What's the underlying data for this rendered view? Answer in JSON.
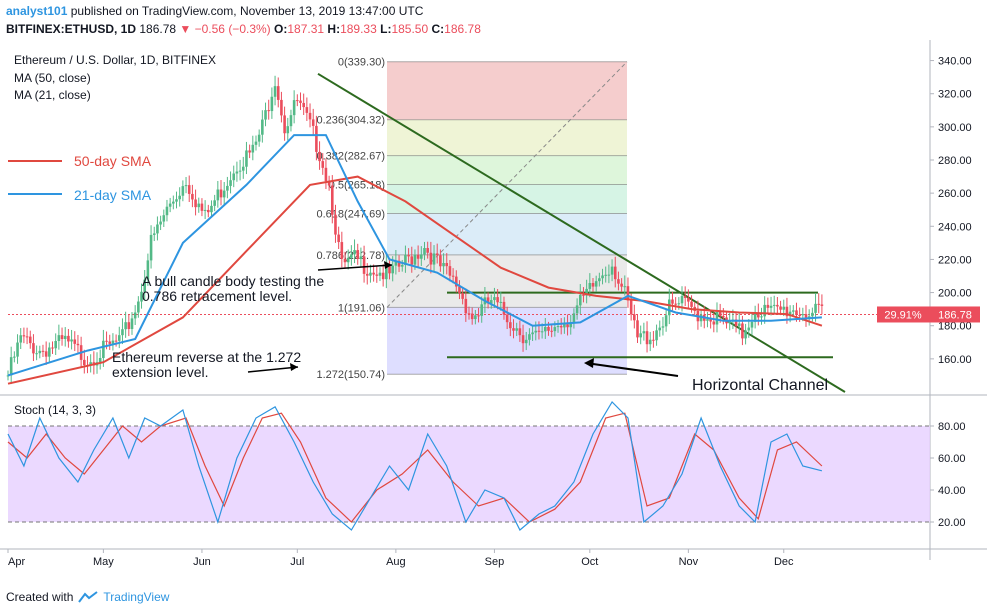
{
  "header": {
    "user": "analyst101",
    "published": "published on TradingView.com, November 13, 2019 13:47:00 UTC",
    "symbol": "BITFINEX:ETHUSD, 1D",
    "last": "186.78",
    "change": "▼ −0.56 (−0.3%)",
    "o_label": "O:",
    "o": "187.31",
    "h_label": "H:",
    "h": "189.33",
    "l_label": "L:",
    "l": "185.50",
    "c_label": "C:",
    "c": "186.78"
  },
  "legend": {
    "title": "Ethereum / U.S. Dollar, 1D, BITFINEX",
    "ma50": "MA (50, close)",
    "ma21": "MA (21, close)"
  },
  "annotations": {
    "sma50": "50-day SMA",
    "sma21": "21-day SMA",
    "bull_line1": "A bull candle body testing the",
    "bull_line2": "0.786 retracement level.",
    "reverse_line1": "Ethereum reverse at the 1.272",
    "reverse_line2": "extension level.",
    "channel": "Horizontal Channel"
  },
  "price_tag": {
    "pct": "29.91%",
    "price": "186.78"
  },
  "stoch": {
    "label": "Stoch (14, 3, 3)",
    "ticks": [
      "80.00",
      "60.00",
      "40.00",
      "20.00"
    ]
  },
  "footer": {
    "created_with": "Created with",
    "brand": "TradingView"
  },
  "colors": {
    "up": "#53b987",
    "down": "#eb4d5c",
    "ma50": "#e0483f",
    "ma21": "#2e95e0",
    "trend": "#2d6a1f",
    "stoch_k": "#2e95e0",
    "stoch_d": "#e0483f",
    "stoch_band": "#e6cfff"
  },
  "chart_data": {
    "type": "candlestick",
    "x_ticks": [
      "Apr",
      "May",
      "Jun",
      "Jul",
      "Aug",
      "Sep",
      "Oct",
      "Nov",
      "Dec"
    ],
    "y_ticks": [
      160,
      180,
      200,
      220,
      240,
      260,
      280,
      300,
      320,
      340
    ],
    "ylim": [
      140,
      350
    ],
    "fib_levels": [
      {
        "label": "0(339.30)",
        "value": 339.3,
        "color": "#f2bcbc"
      },
      {
        "label": "0.236(304.32)",
        "value": 304.32,
        "color": "#e9f0c8"
      },
      {
        "label": "0.382(282.67)",
        "value": 282.67,
        "color": "#d3f3cf"
      },
      {
        "label": "0.5(265.18)",
        "value": 265.18,
        "color": "#c8f0dc"
      },
      {
        "label": "0.618(247.69)",
        "value": 247.69,
        "color": "#cfe6f5"
      },
      {
        "label": "0.786(222.78)",
        "value": 222.78,
        "color": "#e3e3e3"
      },
      {
        "label": "1(191.06)",
        "value": 191.06,
        "color": "#d3d3ff"
      },
      {
        "label": "1.272(150.74)",
        "value": 150.74,
        "color": "#a3d6a6"
      }
    ],
    "channel": [
      200,
      161
    ],
    "price_series": [
      {
        "d": 0,
        "c": 150
      },
      {
        "d": 4,
        "c": 172
      },
      {
        "d": 10,
        "c": 165
      },
      {
        "d": 18,
        "c": 170
      },
      {
        "d": 25,
        "c": 160
      },
      {
        "d": 30,
        "c": 165
      },
      {
        "d": 36,
        "c": 172
      },
      {
        "d": 41,
        "c": 195
      },
      {
        "d": 45,
        "c": 230
      },
      {
        "d": 50,
        "c": 250
      },
      {
        "d": 56,
        "c": 268
      },
      {
        "d": 62,
        "c": 245
      },
      {
        "d": 67,
        "c": 262
      },
      {
        "d": 72,
        "c": 278
      },
      {
        "d": 77,
        "c": 285
      },
      {
        "d": 80,
        "c": 300
      },
      {
        "d": 84,
        "c": 330
      },
      {
        "d": 87,
        "c": 300
      },
      {
        "d": 91,
        "c": 315
      },
      {
        "d": 95,
        "c": 300
      },
      {
        "d": 98,
        "c": 285
      },
      {
        "d": 101,
        "c": 265
      },
      {
        "d": 105,
        "c": 215
      },
      {
        "d": 109,
        "c": 220
      },
      {
        "d": 114,
        "c": 215
      },
      {
        "d": 120,
        "c": 210
      },
      {
        "d": 126,
        "c": 220
      },
      {
        "d": 131,
        "c": 228
      },
      {
        "d": 136,
        "c": 215
      },
      {
        "d": 141,
        "c": 205
      },
      {
        "d": 146,
        "c": 185
      },
      {
        "d": 152,
        "c": 195
      },
      {
        "d": 157,
        "c": 185
      },
      {
        "d": 162,
        "c": 175
      },
      {
        "d": 167,
        "c": 172
      },
      {
        "d": 172,
        "c": 180
      },
      {
        "d": 177,
        "c": 185
      },
      {
        "d": 182,
        "c": 198
      },
      {
        "d": 187,
        "c": 212
      },
      {
        "d": 190,
        "c": 218
      },
      {
        "d": 194,
        "c": 198
      },
      {
        "d": 198,
        "c": 172
      },
      {
        "d": 203,
        "c": 175
      },
      {
        "d": 208,
        "c": 190
      },
      {
        "d": 212,
        "c": 193
      },
      {
        "d": 217,
        "c": 188
      },
      {
        "d": 222,
        "c": 185
      },
      {
        "d": 227,
        "c": 180
      },
      {
        "d": 231,
        "c": 175
      },
      {
        "d": 235,
        "c": 190
      },
      {
        "d": 240,
        "c": 188
      },
      {
        "d": 246,
        "c": 190
      },
      {
        "d": 251,
        "c": 188
      },
      {
        "d": 256,
        "c": 186.78
      }
    ],
    "ma50": [
      {
        "d": 0,
        "c": 145
      },
      {
        "d": 30,
        "c": 158
      },
      {
        "d": 55,
        "c": 185
      },
      {
        "d": 75,
        "c": 225
      },
      {
        "d": 95,
        "c": 265
      },
      {
        "d": 110,
        "c": 270
      },
      {
        "d": 125,
        "c": 255
      },
      {
        "d": 140,
        "c": 235
      },
      {
        "d": 155,
        "c": 215
      },
      {
        "d": 170,
        "c": 203
      },
      {
        "d": 185,
        "c": 198
      },
      {
        "d": 200,
        "c": 195
      },
      {
        "d": 215,
        "c": 190
      },
      {
        "d": 230,
        "c": 188
      },
      {
        "d": 245,
        "c": 187
      },
      {
        "d": 256,
        "c": 180
      }
    ],
    "ma21": [
      {
        "d": 0,
        "c": 150
      },
      {
        "d": 25,
        "c": 165
      },
      {
        "d": 40,
        "c": 172
      },
      {
        "d": 55,
        "c": 230
      },
      {
        "d": 75,
        "c": 265
      },
      {
        "d": 90,
        "c": 295
      },
      {
        "d": 100,
        "c": 295
      },
      {
        "d": 110,
        "c": 255
      },
      {
        "d": 120,
        "c": 220
      },
      {
        "d": 135,
        "c": 212
      },
      {
        "d": 150,
        "c": 195
      },
      {
        "d": 165,
        "c": 180
      },
      {
        "d": 180,
        "c": 182
      },
      {
        "d": 195,
        "c": 198
      },
      {
        "d": 210,
        "c": 188
      },
      {
        "d": 225,
        "c": 183
      },
      {
        "d": 240,
        "c": 183
      },
      {
        "d": 256,
        "c": 185
      }
    ],
    "stoch_k": [
      {
        "d": 0,
        "c": 75
      },
      {
        "d": 5,
        "c": 55
      },
      {
        "d": 10,
        "c": 85
      },
      {
        "d": 16,
        "c": 60
      },
      {
        "d": 22,
        "c": 45
      },
      {
        "d": 27,
        "c": 65
      },
      {
        "d": 33,
        "c": 85
      },
      {
        "d": 38,
        "c": 60
      },
      {
        "d": 43,
        "c": 85
      },
      {
        "d": 48,
        "c": 80
      },
      {
        "d": 55,
        "c": 90
      },
      {
        "d": 60,
        "c": 55
      },
      {
        "d": 66,
        "c": 20
      },
      {
        "d": 72,
        "c": 60
      },
      {
        "d": 78,
        "c": 85
      },
      {
        "d": 84,
        "c": 92
      },
      {
        "d": 90,
        "c": 70
      },
      {
        "d": 96,
        "c": 45
      },
      {
        "d": 102,
        "c": 25
      },
      {
        "d": 108,
        "c": 15
      },
      {
        "d": 114,
        "c": 35
      },
      {
        "d": 120,
        "c": 55
      },
      {
        "d": 126,
        "c": 40
      },
      {
        "d": 132,
        "c": 75
      },
      {
        "d": 138,
        "c": 55
      },
      {
        "d": 144,
        "c": 20
      },
      {
        "d": 150,
        "c": 40
      },
      {
        "d": 156,
        "c": 35
      },
      {
        "d": 161,
        "c": 15
      },
      {
        "d": 167,
        "c": 25
      },
      {
        "d": 172,
        "c": 30
      },
      {
        "d": 178,
        "c": 45
      },
      {
        "d": 184,
        "c": 75
      },
      {
        "d": 190,
        "c": 95
      },
      {
        "d": 195,
        "c": 85
      },
      {
        "d": 200,
        "c": 20
      },
      {
        "d": 206,
        "c": 30
      },
      {
        "d": 212,
        "c": 50
      },
      {
        "d": 218,
        "c": 85
      },
      {
        "d": 224,
        "c": 55
      },
      {
        "d": 230,
        "c": 30
      },
      {
        "d": 235,
        "c": 20
      },
      {
        "d": 240,
        "c": 70
      },
      {
        "d": 245,
        "c": 75
      },
      {
        "d": 250,
        "c": 55
      },
      {
        "d": 256,
        "c": 52
      }
    ],
    "stoch_d": [
      {
        "d": 0,
        "c": 70
      },
      {
        "d": 6,
        "c": 60
      },
      {
        "d": 12,
        "c": 75
      },
      {
        "d": 18,
        "c": 60
      },
      {
        "d": 24,
        "c": 50
      },
      {
        "d": 30,
        "c": 65
      },
      {
        "d": 36,
        "c": 80
      },
      {
        "d": 42,
        "c": 70
      },
      {
        "d": 48,
        "c": 80
      },
      {
        "d": 56,
        "c": 85
      },
      {
        "d": 62,
        "c": 55
      },
      {
        "d": 68,
        "c": 30
      },
      {
        "d": 74,
        "c": 60
      },
      {
        "d": 80,
        "c": 85
      },
      {
        "d": 86,
        "c": 88
      },
      {
        "d": 92,
        "c": 70
      },
      {
        "d": 100,
        "c": 35
      },
      {
        "d": 108,
        "c": 20
      },
      {
        "d": 116,
        "c": 40
      },
      {
        "d": 124,
        "c": 50
      },
      {
        "d": 132,
        "c": 65
      },
      {
        "d": 140,
        "c": 45
      },
      {
        "d": 148,
        "c": 30
      },
      {
        "d": 156,
        "c": 35
      },
      {
        "d": 164,
        "c": 20
      },
      {
        "d": 172,
        "c": 28
      },
      {
        "d": 180,
        "c": 45
      },
      {
        "d": 188,
        "c": 85
      },
      {
        "d": 194,
        "c": 88
      },
      {
        "d": 201,
        "c": 30
      },
      {
        "d": 208,
        "c": 35
      },
      {
        "d": 216,
        "c": 75
      },
      {
        "d": 222,
        "c": 65
      },
      {
        "d": 230,
        "c": 35
      },
      {
        "d": 236,
        "c": 22
      },
      {
        "d": 242,
        "c": 65
      },
      {
        "d": 248,
        "c": 70
      },
      {
        "d": 256,
        "c": 55
      }
    ]
  }
}
